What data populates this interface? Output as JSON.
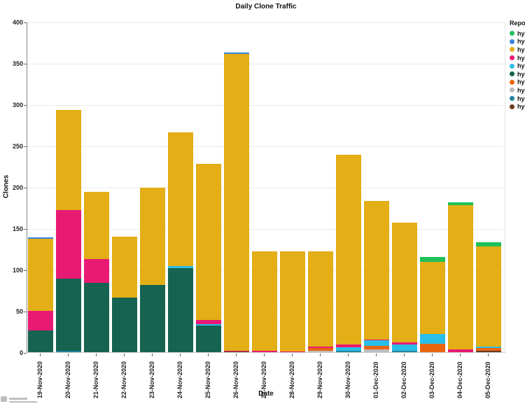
{
  "title": "Daily Clone Traffic",
  "legend": {
    "title": "Repo",
    "items": [
      {
        "label": "hy",
        "color": "#1dc157"
      },
      {
        "label": "hy",
        "color": "#3a82e0"
      },
      {
        "label": "hy",
        "color": "#e3ae16"
      },
      {
        "label": "hy",
        "color": "#e81a74"
      },
      {
        "label": "hy",
        "color": "#29bfe8"
      },
      {
        "label": "hy",
        "color": "#156350"
      },
      {
        "label": "hy",
        "color": "#e96510"
      },
      {
        "label": "hy",
        "color": "#bdbdbd"
      },
      {
        "label": "hy",
        "color": "#23839c"
      },
      {
        "label": "hy",
        "color": "#6b3a21"
      }
    ]
  },
  "chart_data": {
    "type": "bar",
    "stacked": true,
    "title": "Daily Clone Traffic",
    "xlabel": "Date",
    "ylabel": "Clones",
    "ylim": [
      0,
      400
    ],
    "yticks": [
      0,
      50,
      100,
      150,
      200,
      250,
      300,
      350,
      400
    ],
    "grid": true,
    "legend_position": "right",
    "categories": [
      "19-Nov-2020",
      "20-Nov-2020",
      "21-Nov-2020",
      "22-Nov-2020",
      "23-Nov-2020",
      "24-Nov-2020",
      "25-Nov-2020",
      "26-Nov-2020",
      "27-Nov-2020",
      "28-Nov-2020",
      "29-Nov-2020",
      "30-Nov-2020",
      "01-Dec-2020",
      "02-Dec-2020",
      "03-Dec-2020",
      "04-Dec-2020",
      "05-Dec-2020"
    ],
    "totals": [
      139,
      293,
      194,
      140,
      199,
      266,
      228,
      363,
      122,
      122,
      122,
      239,
      183,
      157,
      115,
      181,
      133
    ],
    "series": [
      {
        "name": "hy (brown)",
        "color": "#6b3a21",
        "values": [
          0,
          0,
          0,
          0,
          0,
          0,
          0,
          1,
          0,
          0,
          0,
          0,
          0,
          0,
          0,
          0,
          2
        ]
      },
      {
        "name": "hy (teal)",
        "color": "#23839c",
        "values": [
          0,
          2,
          0,
          0,
          0,
          0,
          0,
          0,
          0,
          0,
          0,
          2,
          0,
          2,
          0,
          0,
          0
        ]
      },
      {
        "name": "hy (gray)",
        "color": "#bdbdbd",
        "values": [
          0,
          0,
          0,
          0,
          0,
          0,
          0,
          0,
          0,
          0,
          2,
          0,
          3,
          0,
          0,
          0,
          0
        ]
      },
      {
        "name": "hy (orange)",
        "color": "#e96510",
        "values": [
          0,
          0,
          0,
          0,
          0,
          0,
          0,
          0,
          0,
          0,
          3,
          0,
          5,
          0,
          10,
          0,
          3
        ]
      },
      {
        "name": "hy (dark-green)",
        "color": "#156350",
        "values": [
          26,
          87,
          84,
          66,
          81,
          102,
          32,
          0,
          0,
          0,
          0,
          0,
          0,
          0,
          0,
          0,
          0
        ]
      },
      {
        "name": "hy (cyan)",
        "color": "#29bfe8",
        "values": [
          0,
          0,
          0,
          0,
          0,
          2,
          2,
          0,
          0,
          0,
          0,
          4,
          6,
          7,
          12,
          0,
          2
        ]
      },
      {
        "name": "hy (pink)",
        "color": "#e81a74",
        "values": [
          24,
          83,
          29,
          0,
          0,
          0,
          5,
          1,
          2,
          1,
          2,
          3,
          1,
          3,
          0,
          3,
          0
        ]
      },
      {
        "name": "hy (gold)",
        "color": "#e3ae16",
        "values": [
          87,
          121,
          81,
          74,
          118,
          162,
          189,
          359,
          120,
          121,
          115,
          230,
          168,
          145,
          87,
          175,
          121
        ]
      },
      {
        "name": "hy (blue)",
        "color": "#3a82e0",
        "values": [
          2,
          0,
          0,
          0,
          0,
          0,
          0,
          2,
          0,
          0,
          0,
          0,
          0,
          0,
          0,
          0,
          0
        ]
      },
      {
        "name": "hy (bright-green)",
        "color": "#1dc157",
        "values": [
          0,
          0,
          0,
          0,
          0,
          0,
          0,
          0,
          0,
          0,
          0,
          0,
          0,
          0,
          6,
          3,
          5
        ]
      }
    ]
  }
}
